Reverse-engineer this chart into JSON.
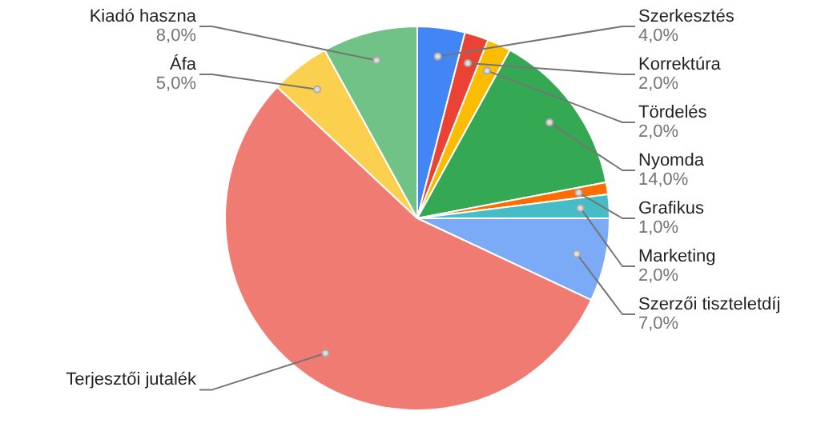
{
  "chart_data": {
    "type": "pie",
    "categories": [
      "Szerkesztés",
      "Korrektúra",
      "Tördelés",
      "Nyomda",
      "Grafikus",
      "Marketing",
      "Szerzői tiszteletdíj",
      "Terjesztői jutalék",
      "Áfa",
      "Kiadó haszna"
    ],
    "values": [
      4,
      2,
      2,
      14,
      1,
      2,
      7,
      55,
      5,
      8
    ],
    "colors": [
      "#4285f4",
      "#ea4335",
      "#fbbc04",
      "#34a853",
      "#ff6d01",
      "#46bdc6",
      "#7baaf7",
      "#f07b72",
      "#fcd04f",
      "#71c287"
    ],
    "value_labels": [
      "4,0%",
      "2,0%",
      "2,0%",
      "14,0%",
      "1,0%",
      "2,0%",
      "7,0%",
      null,
      "5,0%",
      "8,0%"
    ]
  }
}
